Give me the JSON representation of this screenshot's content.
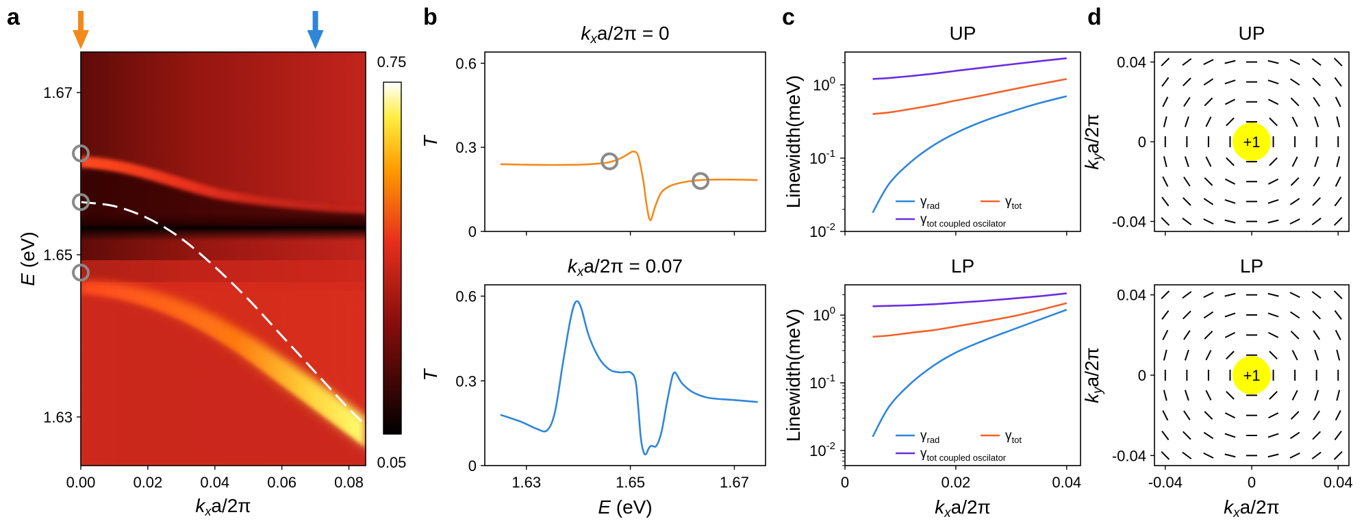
{
  "panels": {
    "a": {
      "letter": "a"
    },
    "b": {
      "letter": "b"
    },
    "c": {
      "letter": "c"
    },
    "d": {
      "letter": "d"
    }
  },
  "chart_data": [
    {
      "id": "a",
      "type": "heatmap",
      "xlabel": "kxa/2π",
      "ylabel": "E (eV)",
      "xlim": [
        0,
        0.085
      ],
      "ylim": [
        1.624,
        1.675
      ],
      "xticks": [
        "0.00",
        "0.02",
        "0.04",
        "0.06",
        "0.08"
      ],
      "yticks": [
        "1.67",
        "1.65",
        "1.63"
      ],
      "colorbar": {
        "min_label": "0.05",
        "max_label": "0.75",
        "range": [
          0.05,
          0.75
        ]
      },
      "dashed_curve": {
        "x": [
          0,
          0.01,
          0.02,
          0.03,
          0.04,
          0.05,
          0.06,
          0.07,
          0.08,
          0.085
        ],
        "y": [
          1.6565,
          1.656,
          1.6545,
          1.652,
          1.6485,
          1.6445,
          1.64,
          1.6355,
          1.631,
          1.629
        ]
      },
      "circles": [
        {
          "x": 0,
          "y": 1.6625
        },
        {
          "x": 0,
          "y": 1.6565
        },
        {
          "x": 0,
          "y": 1.6478
        }
      ],
      "arrows": [
        {
          "x": 0,
          "color": "#f28a1a"
        },
        {
          "x": 0.07,
          "color": "#2f86d9"
        }
      ]
    },
    {
      "id": "b-top",
      "type": "line",
      "title": "kxa/2π = 0",
      "ylabel": "T",
      "xlim": [
        1.622,
        1.676
      ],
      "ylim": [
        0,
        0.64
      ],
      "yticks": [
        "0",
        "0.3",
        "0.6"
      ],
      "series": [
        {
          "color": "#f28a1a",
          "x": [
            1.625,
            1.63,
            1.635,
            1.64,
            1.644,
            1.646,
            1.648,
            1.6495,
            1.6505,
            1.6515,
            1.6525,
            1.653,
            1.6538,
            1.6548,
            1.656,
            1.658,
            1.661,
            1.664,
            1.67,
            1.6745
          ],
          "y": [
            0.24,
            0.238,
            0.237,
            0.238,
            0.242,
            0.247,
            0.26,
            0.275,
            0.285,
            0.27,
            0.18,
            0.11,
            0.04,
            0.09,
            0.14,
            0.165,
            0.178,
            0.184,
            0.185,
            0.183
          ]
        }
      ],
      "circles": [
        {
          "x": 1.646,
          "y": 0.25
        },
        {
          "x": 1.6635,
          "y": 0.18
        }
      ]
    },
    {
      "id": "b-bottom",
      "type": "line",
      "title": "kxa/2π = 0.07",
      "xlabel": "E (eV)",
      "ylabel": "T",
      "xlim": [
        1.622,
        1.676
      ],
      "ylim": [
        0,
        0.64
      ],
      "xticks": [
        "1.63",
        "1.65",
        "1.67"
      ],
      "yticks": [
        "0",
        "0.3",
        "0.6"
      ],
      "series": [
        {
          "color": "#2f86d9",
          "x": [
            1.625,
            1.629,
            1.632,
            1.634,
            1.6355,
            1.637,
            1.6385,
            1.6395,
            1.6405,
            1.642,
            1.644,
            1.646,
            1.648,
            1.65,
            1.651,
            1.6515,
            1.652,
            1.6525,
            1.653,
            1.6535,
            1.654,
            1.655,
            1.656,
            1.657,
            1.658,
            1.6585,
            1.659,
            1.66,
            1.662,
            1.665,
            1.67,
            1.6745
          ],
          "y": [
            0.18,
            0.155,
            0.13,
            0.125,
            0.19,
            0.36,
            0.52,
            0.58,
            0.56,
            0.46,
            0.38,
            0.34,
            0.33,
            0.33,
            0.3,
            0.21,
            0.1,
            0.05,
            0.04,
            0.06,
            0.07,
            0.07,
            0.12,
            0.22,
            0.31,
            0.33,
            0.32,
            0.29,
            0.26,
            0.24,
            0.232,
            0.225
          ]
        }
      ]
    },
    {
      "id": "c-top",
      "type": "line",
      "title": "UP",
      "ylabel": "Linewidth(meV)",
      "yscale": "log",
      "xlim": [
        0,
        0.0425
      ],
      "ylim": [
        0.01,
        2.8
      ],
      "yticks_exp": [
        "0",
        "-1",
        "-2"
      ],
      "series": [
        {
          "name": "γrad",
          "color": "#2f86d9",
          "x": [
            0.005,
            0.008,
            0.012,
            0.016,
            0.02,
            0.025,
            0.03,
            0.035,
            0.04
          ],
          "y": [
            0.018,
            0.045,
            0.09,
            0.15,
            0.22,
            0.32,
            0.43,
            0.56,
            0.7
          ]
        },
        {
          "name": "γtot",
          "color": "#f2612a",
          "x": [
            0.005,
            0.008,
            0.012,
            0.016,
            0.02,
            0.025,
            0.03,
            0.035,
            0.04
          ],
          "y": [
            0.4,
            0.42,
            0.47,
            0.53,
            0.61,
            0.72,
            0.86,
            1.02,
            1.2
          ]
        },
        {
          "name": "γtot coupled oscilator",
          "color": "#6a2be0",
          "x": [
            0.005,
            0.008,
            0.012,
            0.016,
            0.02,
            0.025,
            0.03,
            0.035,
            0.04
          ],
          "y": [
            1.2,
            1.24,
            1.32,
            1.42,
            1.55,
            1.72,
            1.9,
            2.1,
            2.3
          ]
        }
      ],
      "legend": {
        "placement": "bottom-right",
        "labels": [
          {
            "base": "γ",
            "sub": "rad"
          },
          {
            "base": "γ",
            "sub": "tot"
          },
          {
            "base": "γ",
            "sub": "tot coupled oscilator"
          }
        ]
      }
    },
    {
      "id": "c-bottom",
      "type": "line",
      "title": "LP",
      "xlabel": "kxa/2π",
      "ylabel": "Linewidth(meV)",
      "yscale": "log",
      "xlim": [
        0,
        0.0425
      ],
      "ylim": [
        0.006,
        2.8
      ],
      "xticks": [
        "0",
        "0.02",
        "0.04"
      ],
      "yticks_exp": [
        "0",
        "-1",
        "-2"
      ],
      "series": [
        {
          "name": "γrad",
          "color": "#2f86d9",
          "x": [
            0.005,
            0.008,
            0.012,
            0.016,
            0.02,
            0.025,
            0.03,
            0.035,
            0.04
          ],
          "y": [
            0.016,
            0.045,
            0.1,
            0.18,
            0.28,
            0.42,
            0.6,
            0.85,
            1.2
          ]
        },
        {
          "name": "γtot",
          "color": "#f2612a",
          "x": [
            0.005,
            0.008,
            0.012,
            0.016,
            0.02,
            0.025,
            0.03,
            0.035,
            0.04
          ],
          "y": [
            0.48,
            0.5,
            0.55,
            0.6,
            0.68,
            0.8,
            0.95,
            1.18,
            1.5
          ]
        },
        {
          "name": "γtot coupled oscilator",
          "color": "#6a2be0",
          "x": [
            0.005,
            0.008,
            0.012,
            0.016,
            0.02,
            0.025,
            0.03,
            0.035,
            0.04
          ],
          "y": [
            1.35,
            1.37,
            1.4,
            1.45,
            1.52,
            1.62,
            1.75,
            1.9,
            2.1
          ]
        }
      ],
      "legend": {
        "placement": "bottom-right",
        "labels": [
          {
            "base": "γ",
            "sub": "rad"
          },
          {
            "base": "γ",
            "sub": "tot"
          },
          {
            "base": "γ",
            "sub": "tot coupled oscilator"
          }
        ]
      }
    },
    {
      "id": "d-top",
      "type": "scatter",
      "title": "UP",
      "ylabel": "kya/2π",
      "xlim": [
        -0.045,
        0.045
      ],
      "ylim": [
        -0.045,
        0.045
      ],
      "yticks": [
        "0.04",
        "0",
        "-0.04"
      ],
      "vector_field": {
        "kind": "azimuthal",
        "grid": [
          -0.04,
          -0.03,
          -0.02,
          -0.01,
          0,
          0.01,
          0.02,
          0.03,
          0.04
        ]
      },
      "charge": {
        "label": "+1",
        "x": 0,
        "y": 0,
        "color": "#ffff00"
      }
    },
    {
      "id": "d-bottom",
      "type": "scatter",
      "title": "LP",
      "xlabel": "kxa/2π",
      "ylabel": "kya/2π",
      "xlim": [
        -0.045,
        0.045
      ],
      "ylim": [
        -0.045,
        0.045
      ],
      "xticks": [
        "-0.04",
        "0",
        "0.04"
      ],
      "yticks": [
        "0.04",
        "0",
        "-0.04"
      ],
      "vector_field": {
        "kind": "azimuthal",
        "grid": [
          -0.04,
          -0.03,
          -0.02,
          -0.01,
          0,
          0.01,
          0.02,
          0.03,
          0.04
        ]
      },
      "charge": {
        "label": "+1",
        "x": 0,
        "y": 0,
        "color": "#ffff00"
      }
    }
  ]
}
